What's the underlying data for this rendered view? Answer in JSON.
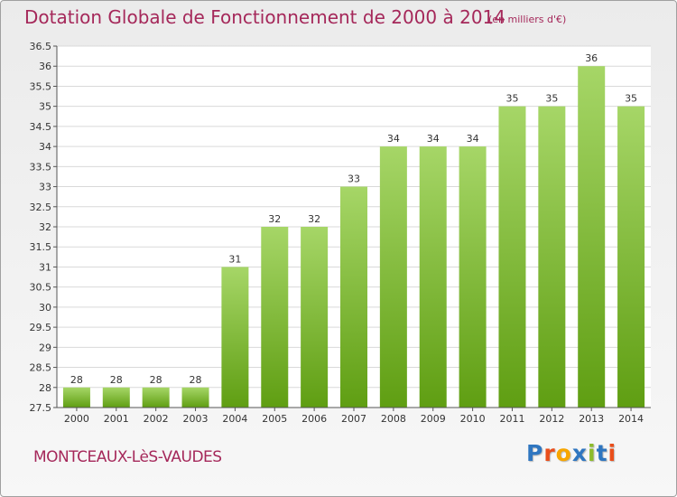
{
  "title": "Dotation Globale de Fonctionnement de 2000 à 2014",
  "unit_note": "(en milliers d'€)",
  "town": "MONTCEAUX-LèS-VAUDES",
  "logo": {
    "text": "Proxiti",
    "letters": [
      "P",
      "r",
      "o",
      "x",
      "i",
      "t",
      "i"
    ],
    "letter_colors": [
      "#2f76c0",
      "#e94e1b",
      "#f7a600",
      "#2f76c0",
      "#8dbb2b",
      "#2f76c0",
      "#e94e1b"
    ]
  },
  "colors": {
    "title": "#a5285a",
    "bar_top": "#a6d667",
    "bar_bottom": "#5f9e12",
    "grid": "#d9d9d9",
    "axis": "#555555"
  },
  "chart_data": {
    "type": "bar",
    "title": "Dotation Globale de Fonctionnement de 2000 à 2014",
    "subtitle": "(en milliers d'€)",
    "xlabel": "",
    "ylabel": "",
    "categories": [
      "2000",
      "2001",
      "2002",
      "2003",
      "2004",
      "2005",
      "2006",
      "2007",
      "2008",
      "2009",
      "2010",
      "2011",
      "2012",
      "2013",
      "2014"
    ],
    "values": [
      28,
      28,
      28,
      28,
      31,
      32,
      32,
      33,
      34,
      34,
      34,
      35,
      35,
      36,
      35
    ],
    "ylim": [
      27.5,
      36.5
    ],
    "yticks": [
      "27.5",
      "28",
      "28.5",
      "29",
      "29.5",
      "30",
      "30.5",
      "31",
      "31.5",
      "32",
      "32.5",
      "33",
      "33.5",
      "34",
      "34.5",
      "35",
      "35.5",
      "36",
      "36.5"
    ],
    "grid": true,
    "data_labels": true
  }
}
